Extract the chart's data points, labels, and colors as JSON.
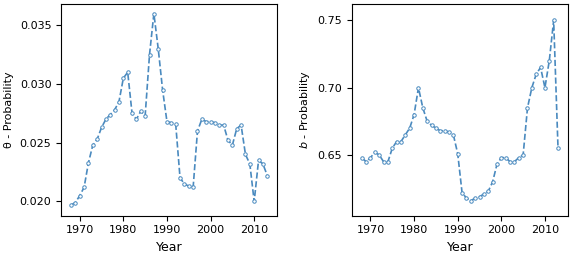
{
  "years": [
    1968,
    1969,
    1970,
    1971,
    1972,
    1973,
    1974,
    1975,
    1976,
    1977,
    1978,
    1979,
    1980,
    1981,
    1982,
    1983,
    1984,
    1985,
    1986,
    1987,
    1988,
    1989,
    1990,
    1991,
    1992,
    1993,
    1994,
    1995,
    1996,
    1997,
    1998,
    1999,
    2000,
    2001,
    2002,
    2003,
    2004,
    2005,
    2006,
    2007,
    2008,
    2009,
    2010,
    2011,
    2012,
    2013
  ],
  "theta": [
    0.0197,
    0.0199,
    0.0205,
    0.0212,
    0.0233,
    0.0248,
    0.0253,
    0.0263,
    0.027,
    0.0274,
    0.0278,
    0.0285,
    0.0305,
    0.031,
    0.0275,
    0.027,
    0.0277,
    0.0273,
    0.0325,
    0.036,
    0.033,
    0.0295,
    0.0268,
    0.0267,
    0.0266,
    0.022,
    0.0215,
    0.0213,
    0.0212,
    0.026,
    0.027,
    0.0268,
    0.0268,
    0.0267,
    0.0265,
    0.0265,
    0.0252,
    0.0248,
    0.0262,
    0.0265,
    0.024,
    0.0232,
    0.02,
    0.0235,
    0.0232,
    0.0222
  ],
  "b": [
    0.648,
    0.645,
    0.648,
    0.652,
    0.65,
    0.645,
    0.645,
    0.655,
    0.66,
    0.66,
    0.665,
    0.67,
    0.68,
    0.7,
    0.685,
    0.675,
    0.672,
    0.67,
    0.668,
    0.668,
    0.667,
    0.665,
    0.651,
    0.622,
    0.618,
    0.616,
    0.618,
    0.619,
    0.621,
    0.623,
    0.63,
    0.643,
    0.648,
    0.648,
    0.645,
    0.645,
    0.648,
    0.65,
    0.685,
    0.7,
    0.71,
    0.715,
    0.7,
    0.72,
    0.75,
    0.655
  ],
  "line_color": "#4a8abf",
  "marker": "o",
  "markersize": 2.5,
  "linewidth": 1.2,
  "linestyle": "--",
  "ylabel_left": "θ - Probability",
  "ylabel_right": "$b$ - Probability",
  "xlabel": "Year",
  "ylim_left": [
    0.0188,
    0.0368
  ],
  "ylim_right": [
    0.605,
    0.762
  ],
  "yticks_left": [
    0.02,
    0.025,
    0.03,
    0.035
  ],
  "yticks_right": [
    0.65,
    0.7,
    0.75
  ],
  "xticks": [
    1970,
    1980,
    1990,
    2000,
    2010
  ]
}
